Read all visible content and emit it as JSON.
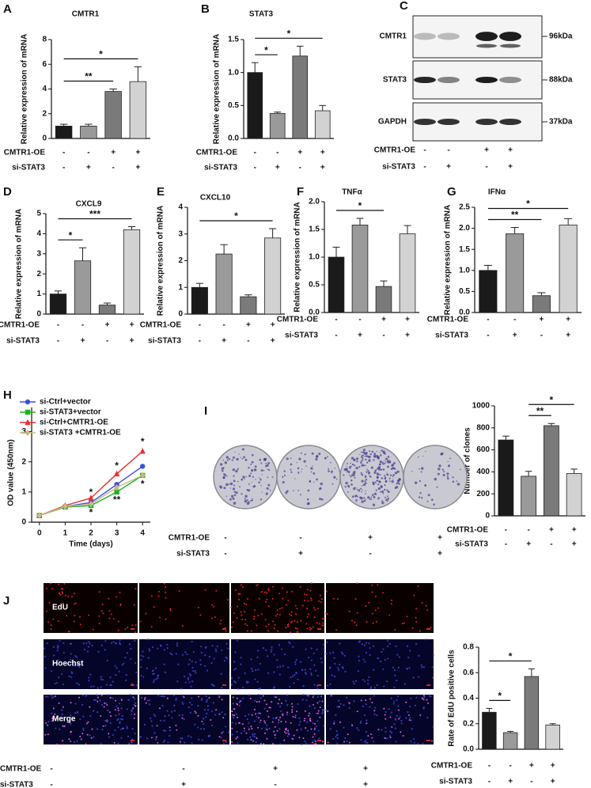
{
  "chart_data": [
    {
      "type": "bar",
      "panel": "A",
      "title": "CMTR1",
      "ylabel": "Relative expression of mRNA",
      "values": [
        1.0,
        1.0,
        3.8,
        4.6
      ],
      "errors": [
        0.15,
        0.15,
        0.2,
        1.2
      ],
      "colors": [
        "#1a1a1a",
        "#9a9a9a",
        "#7a7a7a",
        "#d2d2d2"
      ],
      "ylim": [
        0,
        8
      ],
      "yticks": [
        0,
        2,
        4,
        6,
        8
      ],
      "significance": [
        {
          "from": 0,
          "to": 2,
          "label": "**"
        },
        {
          "from": 0,
          "to": 3,
          "label": "*"
        }
      ],
      "conditions": [
        {
          "name": "CMTR1-OE",
          "signs": [
            "-",
            "-",
            "+",
            "+"
          ]
        },
        {
          "name": "si-STAT3",
          "signs": [
            "-",
            "+",
            "-",
            "+"
          ]
        }
      ]
    },
    {
      "type": "bar",
      "panel": "B",
      "title": "STAT3",
      "ylabel": "Relative expression of mRNA",
      "values": [
        1.0,
        0.38,
        1.25,
        0.42
      ],
      "errors": [
        0.15,
        0.02,
        0.15,
        0.08
      ],
      "colors": [
        "#1a1a1a",
        "#9a9a9a",
        "#7a7a7a",
        "#d2d2d2"
      ],
      "ylim": [
        0,
        1.5
      ],
      "yticks": [
        {
          "value": 0,
          "label": "0.0"
        },
        0.5,
        {
          "value": 1,
          "label": "1.0"
        },
        1.5
      ],
      "significance": [
        {
          "from": 0,
          "to": 1,
          "label": "*"
        },
        {
          "from": 0,
          "to": 3,
          "label": "*"
        }
      ],
      "conditions": [
        {
          "name": "CMTR1-OE",
          "signs": [
            "-",
            "-",
            "+",
            "+"
          ]
        },
        {
          "name": "si-STAT3",
          "signs": [
            "-",
            "+",
            "-",
            "+"
          ]
        }
      ]
    },
    {
      "type": "bar",
      "panel": "D",
      "title": "CXCL9",
      "ylabel": "Relative expression of mRNA",
      "values": [
        1.0,
        2.65,
        0.45,
        4.2
      ],
      "errors": [
        0.15,
        0.65,
        0.1,
        0.15
      ],
      "colors": [
        "#1a1a1a",
        "#9a9a9a",
        "#7a7a7a",
        "#d2d2d2"
      ],
      "ylim": [
        0,
        5
      ],
      "yticks": [
        0,
        1,
        2,
        3,
        4,
        5
      ],
      "significance": [
        {
          "from": 0,
          "to": 1,
          "label": "*"
        },
        {
          "from": 0,
          "to": 3,
          "label": "***"
        }
      ],
      "conditions": [
        {
          "name": "CMTR1-OE",
          "signs": [
            "-",
            "-",
            "+",
            "+"
          ]
        },
        {
          "name": "si-STAT3",
          "signs": [
            "-",
            "+",
            "-",
            "+"
          ]
        }
      ]
    },
    {
      "type": "bar",
      "panel": "E",
      "title": "CXCL10",
      "ylabel": "Relative expression of mRNA",
      "values": [
        1.0,
        2.25,
        0.65,
        2.85
      ],
      "errors": [
        0.15,
        0.35,
        0.07,
        0.35
      ],
      "colors": [
        "#1a1a1a",
        "#9a9a9a",
        "#7a7a7a",
        "#d2d2d2"
      ],
      "ylim": [
        0,
        4
      ],
      "yticks": [
        0,
        1,
        2,
        3,
        4
      ],
      "significance": [
        {
          "from": 0,
          "to": 3,
          "label": "*"
        }
      ],
      "conditions": [
        {
          "name": "CMTR1-OE",
          "signs": [
            "-",
            "-",
            "+",
            "+"
          ]
        },
        {
          "name": "si-STAT3",
          "signs": [
            "-",
            "+",
            "-",
            "+"
          ]
        }
      ]
    },
    {
      "type": "bar",
      "panel": "F",
      "title": "TNFα",
      "ylabel": "Relative expression of mRNA",
      "values": [
        1.0,
        1.58,
        0.47,
        1.42
      ],
      "errors": [
        0.18,
        0.12,
        0.1,
        0.15
      ],
      "colors": [
        "#1a1a1a",
        "#9a9a9a",
        "#7a7a7a",
        "#d2d2d2"
      ],
      "ylim": [
        0,
        2
      ],
      "yticks": [
        {
          "value": 0,
          "label": "0.0"
        },
        0.5,
        {
          "value": 1,
          "label": "1.0"
        },
        1.5,
        {
          "value": 2,
          "label": "2.0"
        }
      ],
      "significance": [
        {
          "from": 0,
          "to": 2,
          "label": "*"
        }
      ],
      "conditions": [
        {
          "name": "CMTR1-OE",
          "signs": [
            "-",
            "-",
            "+",
            "+"
          ]
        },
        {
          "name": "si-STAT3",
          "signs": [
            "-",
            "+",
            "-",
            "+"
          ]
        }
      ]
    },
    {
      "type": "bar",
      "panel": "G",
      "title": "IFNα",
      "ylabel": "Relative expression of mRNA",
      "values": [
        1.0,
        1.87,
        0.4,
        2.08
      ],
      "errors": [
        0.12,
        0.15,
        0.07,
        0.15
      ],
      "colors": [
        "#1a1a1a",
        "#9a9a9a",
        "#7a7a7a",
        "#d2d2d2"
      ],
      "ylim": [
        0,
        2.5
      ],
      "yticks": [
        {
          "value": 0,
          "label": "0.0"
        },
        0.5,
        {
          "value": 1,
          "label": "1.0"
        },
        1.5,
        {
          "value": 2,
          "label": "2.0"
        },
        2.5
      ],
      "significance": [
        {
          "from": 0,
          "to": 2,
          "label": "**"
        },
        {
          "from": 0,
          "to": 3,
          "label": "*"
        }
      ],
      "conditions": [
        {
          "name": "CMTR1-OE",
          "signs": [
            "-",
            "-",
            "+",
            "+"
          ]
        },
        {
          "name": "si-STAT3",
          "signs": [
            "-",
            "+",
            "-",
            "+"
          ]
        }
      ]
    },
    {
      "type": "line",
      "panel": "H",
      "xlabel": "Time (days)",
      "ylabel": "OD value (450nm)",
      "x": [
        0,
        1,
        2,
        3,
        4
      ],
      "xlim": [
        -0.3,
        4.3
      ],
      "xticks": [
        0,
        1,
        2,
        3,
        4
      ],
      "ylim": [
        0,
        3.8
      ],
      "yticks": [
        0,
        1,
        2,
        3
      ],
      "series": [
        {
          "name": "si-Ctrl+vector",
          "color": "#3b4fe0",
          "marker": "circle",
          "values": [
            0.22,
            0.52,
            0.65,
            1.25,
            1.85
          ]
        },
        {
          "name": "si-STAT3+vector",
          "color": "#22b022",
          "marker": "square",
          "values": [
            0.22,
            0.5,
            0.55,
            1.0,
            1.55
          ]
        },
        {
          "name": "si-Ctrl+CMTR1-OE",
          "color": "#e8312f",
          "marker": "triangle",
          "values": [
            0.22,
            0.55,
            0.8,
            1.6,
            2.35
          ]
        },
        {
          "name": "si-STAT3 +CMTR1-OE",
          "color": "#c8b98a",
          "marker": "diamond",
          "values": [
            0.22,
            0.52,
            0.6,
            1.15,
            1.55
          ]
        }
      ],
      "annotations": [
        {
          "x": 2,
          "y": 0.98,
          "text": "*"
        },
        {
          "x": 2,
          "y": 0.3,
          "text": "*"
        },
        {
          "x": 3,
          "y": 1.85,
          "text": "*"
        },
        {
          "x": 3,
          "y": 0.72,
          "text": "**"
        },
        {
          "x": 4,
          "y": 2.65,
          "text": "*"
        },
        {
          "x": 4,
          "y": 1.25,
          "text": "*"
        }
      ]
    },
    {
      "type": "bar",
      "panel": "I",
      "ylabel": "Number of clones",
      "values": [
        690,
        360,
        820,
        385
      ],
      "errors": [
        35,
        45,
        20,
        40
      ],
      "colors": [
        "#1a1a1a",
        "#9a9a9a",
        "#7a7a7a",
        "#d2d2d2"
      ],
      "ylim": [
        0,
        1000
      ],
      "yticks": [
        0,
        200,
        400,
        600,
        800,
        1000
      ],
      "significance": [
        {
          "from": 1,
          "to": 2,
          "label": "**"
        },
        {
          "from": 1,
          "to": 3,
          "label": "*"
        }
      ],
      "conditions": [
        {
          "name": "CMTR1-OE",
          "signs": [
            "-",
            "-",
            "+",
            "+"
          ]
        },
        {
          "name": "si-STAT3",
          "signs": [
            "-",
            "+",
            "-",
            "+"
          ]
        }
      ]
    },
    {
      "type": "bar",
      "panel": "J",
      "ylabel": "Rate of EdU positive cells",
      "values": [
        0.29,
        0.13,
        0.57,
        0.19
      ],
      "errors": [
        0.03,
        0.01,
        0.06,
        0.01
      ],
      "colors": [
        "#1a1a1a",
        "#9a9a9a",
        "#7a7a7a",
        "#d2d2d2"
      ],
      "ylim": [
        0,
        0.8
      ],
      "yticks": [
        {
          "value": 0,
          "label": "0.0"
        },
        0.2,
        0.4,
        0.6,
        0.8
      ],
      "significance": [
        {
          "from": 0,
          "to": 1,
          "label": "*"
        },
        {
          "from": 0,
          "to": 2,
          "label": "*"
        }
      ],
      "conditions": [
        {
          "name": "CMTR1-OE",
          "signs": [
            "-",
            "-",
            "+",
            "+"
          ]
        },
        {
          "name": "si-STAT3",
          "signs": [
            "-",
            "+",
            "-",
            "+"
          ]
        }
      ]
    }
  ],
  "blot": {
    "panel": "C",
    "rows": [
      {
        "label": "CMTR1",
        "size": "96kDa"
      },
      {
        "label": "STAT3",
        "size": "88kDa"
      },
      {
        "label": "GAPDH",
        "size": "37kDa"
      }
    ],
    "conditions": [
      {
        "name": "CMTR1-OE",
        "signs": [
          "-",
          "-",
          "+",
          "+"
        ]
      },
      {
        "name": "si-STAT3",
        "signs": [
          "-",
          "+",
          "-",
          "+"
        ]
      }
    ]
  },
  "colony": {
    "conditions": [
      {
        "name": "CMTR1-OE",
        "signs": [
          "-",
          "-",
          "+",
          "+"
        ]
      },
      {
        "name": "si-STAT3",
        "signs": [
          "-",
          "+",
          "-",
          "+"
        ]
      }
    ]
  },
  "edu": {
    "rows": [
      "EdU",
      "Hoechst",
      "Merge"
    ],
    "conditions": [
      {
        "name": "CMTR1-OE",
        "signs": [
          "-",
          "-",
          "+",
          "+"
        ]
      },
      {
        "name": "si-STAT3",
        "signs": [
          "-",
          "+",
          "-",
          "+"
        ]
      }
    ]
  }
}
